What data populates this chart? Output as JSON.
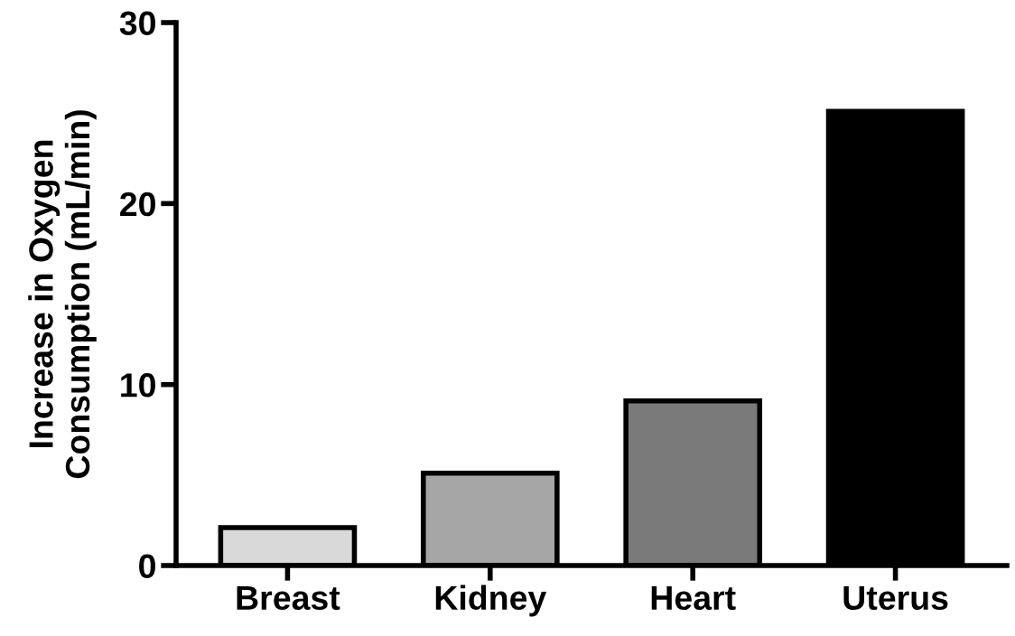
{
  "chart_data": {
    "type": "bar",
    "ylabel": "Increase in Oxygen\nConsumption (mL/min)",
    "categories": [
      "Breast",
      "Kidney",
      "Heart",
      "Uterus"
    ],
    "values": [
      2.1,
      5.1,
      9.1,
      25.1
    ],
    "colors": [
      "#d9d9d9",
      "#a6a6a6",
      "#7a7a7a",
      "#000000"
    ],
    "ylim": [
      0,
      30
    ],
    "yticks": [
      0,
      10,
      20,
      30
    ],
    "grid": false,
    "legend": false
  }
}
